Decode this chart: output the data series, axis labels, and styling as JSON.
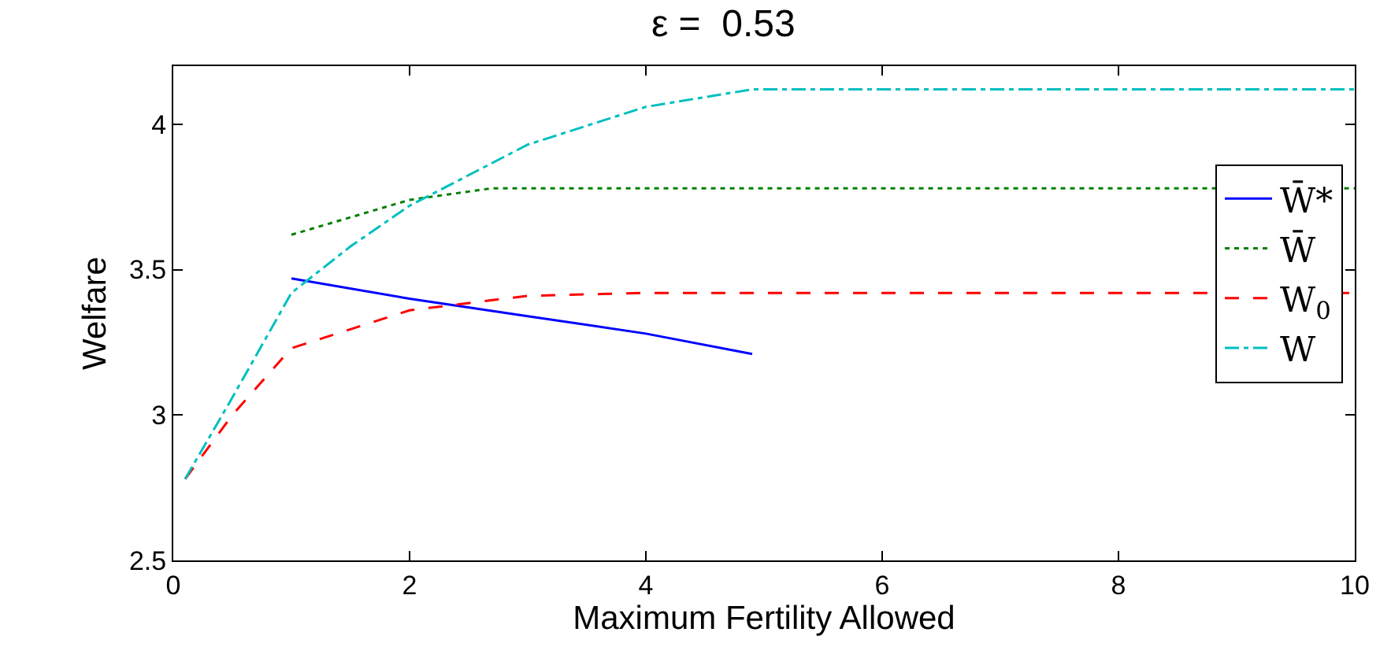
{
  "chart_data": {
    "type": "line",
    "title": "ε =  0.53",
    "xlabel": "Maximum Fertility Allowed",
    "ylabel": "Welfare",
    "xlim": [
      0,
      10
    ],
    "xticks": [
      0,
      2,
      4,
      6,
      8,
      10
    ],
    "ylim": [
      2.5,
      4.2
    ],
    "yticks": [
      2.5,
      3,
      3.5,
      4
    ],
    "legend": "right",
    "series": [
      {
        "name": "W̄*",
        "color": "#0000ff",
        "line_style": "solid",
        "x": [
          1,
          2,
          3,
          4,
          4.9
        ],
        "values": [
          3.47,
          3.4,
          3.34,
          3.28,
          3.21
        ]
      },
      {
        "name": "W̄",
        "color": "#008000",
        "line_style": "dotted",
        "x": [
          1,
          2,
          2.7,
          10
        ],
        "values": [
          3.62,
          3.74,
          3.78,
          3.78
        ]
      },
      {
        "name": "W$_{0}$",
        "color": "#ff0000",
        "line_style": "dashed",
        "x": [
          0.1,
          0.5,
          1,
          2,
          3,
          4,
          10
        ],
        "values": [
          2.78,
          3.0,
          3.23,
          3.36,
          3.41,
          3.42,
          3.42
        ]
      },
      {
        "name": "W",
        "color": "#00bfbf",
        "line_style": "dashdot",
        "x": [
          0.1,
          0.5,
          1,
          1.5,
          2,
          3,
          4,
          4.9,
          10
        ],
        "values": [
          2.78,
          3.06,
          3.42,
          3.58,
          3.72,
          3.93,
          4.06,
          4.12,
          4.12
        ]
      }
    ]
  }
}
